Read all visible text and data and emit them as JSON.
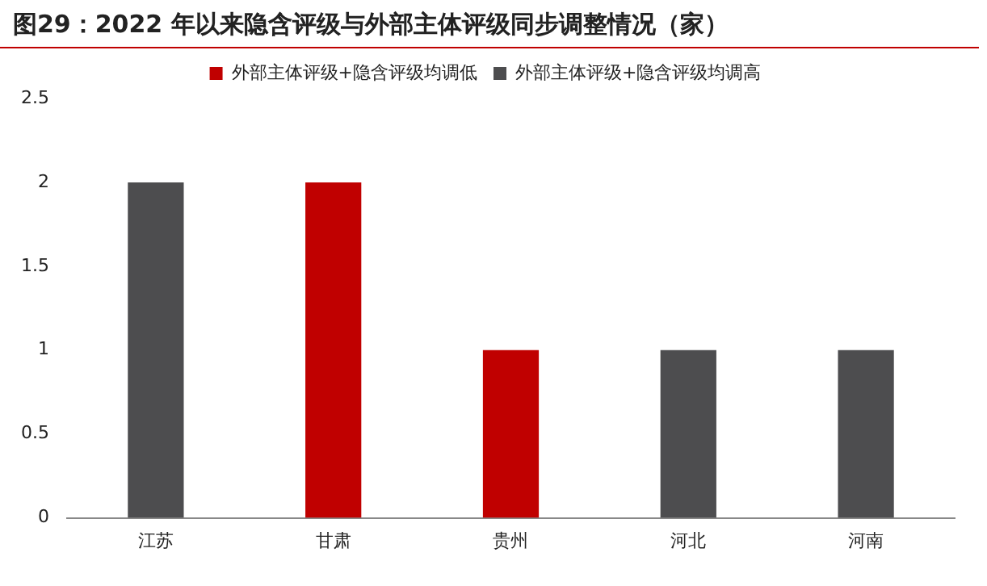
{
  "chart_data": {
    "type": "bar",
    "title": "图29：2022 年以来隐含评级与外部主体评级同步调整情况（家）",
    "categories": [
      "江苏",
      "甘肃",
      "贵州",
      "河北",
      "河南"
    ],
    "series": [
      {
        "name": "外部主体评级+隐含评级均调低",
        "color": "#c00000",
        "values": [
          null,
          2,
          1,
          null,
          null
        ]
      },
      {
        "name": "外部主体评级+隐含评级均调高",
        "color": "#4d4d4f",
        "values": [
          2,
          null,
          null,
          1,
          1
        ]
      }
    ],
    "ylim": [
      0,
      2.5
    ],
    "yticks": [
      0,
      0.5,
      1,
      1.5,
      2,
      2.5
    ],
    "grid": false,
    "legend": "top"
  }
}
